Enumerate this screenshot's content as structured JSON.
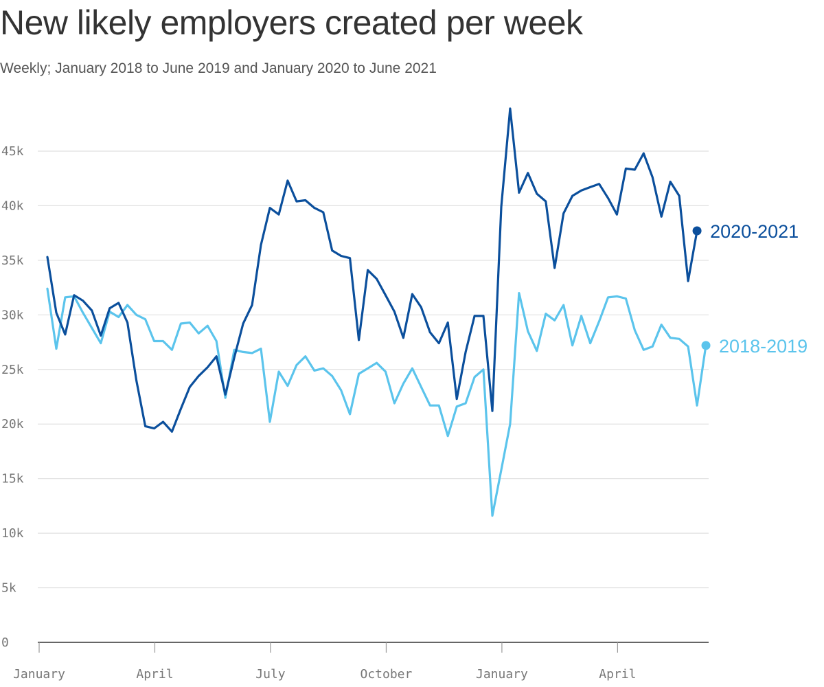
{
  "title": "New likely employers created per week",
  "subtitle": "Weekly; January 2018 to June 2019 and January 2020 to June 2021",
  "colors": {
    "series_2020": "#0b4f9c",
    "series_2018": "#5bc4ec",
    "grid": "#e0e0e0",
    "axis": "#333333"
  },
  "chart_data": {
    "type": "line",
    "title": "New likely employers created per week",
    "subtitle": "Weekly; January 2018 to June 2019 and January 2020 to June 2021",
    "xlabel": "",
    "ylabel": "",
    "ylim": [
      0,
      49000
    ],
    "grid": true,
    "yticks": [
      0,
      5000,
      10000,
      15000,
      20000,
      25000,
      30000,
      35000,
      40000,
      45000
    ],
    "ytick_labels": [
      "0",
      "5k",
      "10k",
      "15k",
      "20k",
      "25k",
      "30k",
      "35k",
      "40k",
      "45k"
    ],
    "xtick_labels": [
      "January",
      "April",
      "July",
      "October",
      "January",
      "April"
    ],
    "xtick_weeks": [
      0,
      13,
      26,
      39,
      52,
      65
    ],
    "x_unit": "week index from first week of January",
    "series": [
      {
        "name": "2020-2021",
        "color": "#0b4f9c",
        "values": [
          35300,
          30200,
          28200,
          31800,
          31300,
          30400,
          28100,
          30600,
          31100,
          29300,
          24000,
          19800,
          19600,
          20200,
          19300,
          21400,
          23400,
          24400,
          25200,
          26200,
          22700,
          26100,
          29200,
          30900,
          36400,
          39800,
          39200,
          42300,
          40400,
          40500,
          39800,
          39400,
          35900,
          35400,
          35200,
          27700,
          34100,
          33300,
          31800,
          30300,
          27900,
          31900,
          30700,
          28400,
          27400,
          29300,
          22300,
          26600,
          29900,
          29900,
          21200,
          39900,
          48900,
          41200,
          43000,
          41100,
          40400,
          34300,
          39300,
          40900,
          41400,
          41700,
          42000,
          40700,
          39200,
          43400,
          43300,
          44800,
          42600,
          39000,
          42200,
          40900,
          33100,
          37700
        ]
      },
      {
        "name": "2018-2019",
        "color": "#5bc4ec",
        "values": [
          32400,
          26900,
          31600,
          31700,
          30200,
          28800,
          27400,
          30300,
          29800,
          30900,
          30000,
          29600,
          27600,
          27600,
          26800,
          29200,
          29300,
          28300,
          29000,
          27600,
          22400,
          26800,
          26600,
          26500,
          26900,
          20200,
          24800,
          23500,
          25400,
          26200,
          24900,
          25100,
          24400,
          23100,
          20900,
          24600,
          25100,
          25600,
          24800,
          21900,
          23700,
          25100,
          23400,
          21700,
          21700,
          18900,
          21600,
          21900,
          24300,
          25000,
          11600,
          15800,
          20000,
          32000,
          28500,
          26700,
          30100,
          29500,
          30900,
          27200,
          29900,
          27400,
          29400,
          31600,
          31700,
          31500,
          28600,
          26800,
          27100,
          29100,
          27900,
          27800,
          27100,
          21700,
          27200
        ]
      }
    ],
    "end_labels": [
      "2020-2021",
      "2018-2019"
    ]
  }
}
